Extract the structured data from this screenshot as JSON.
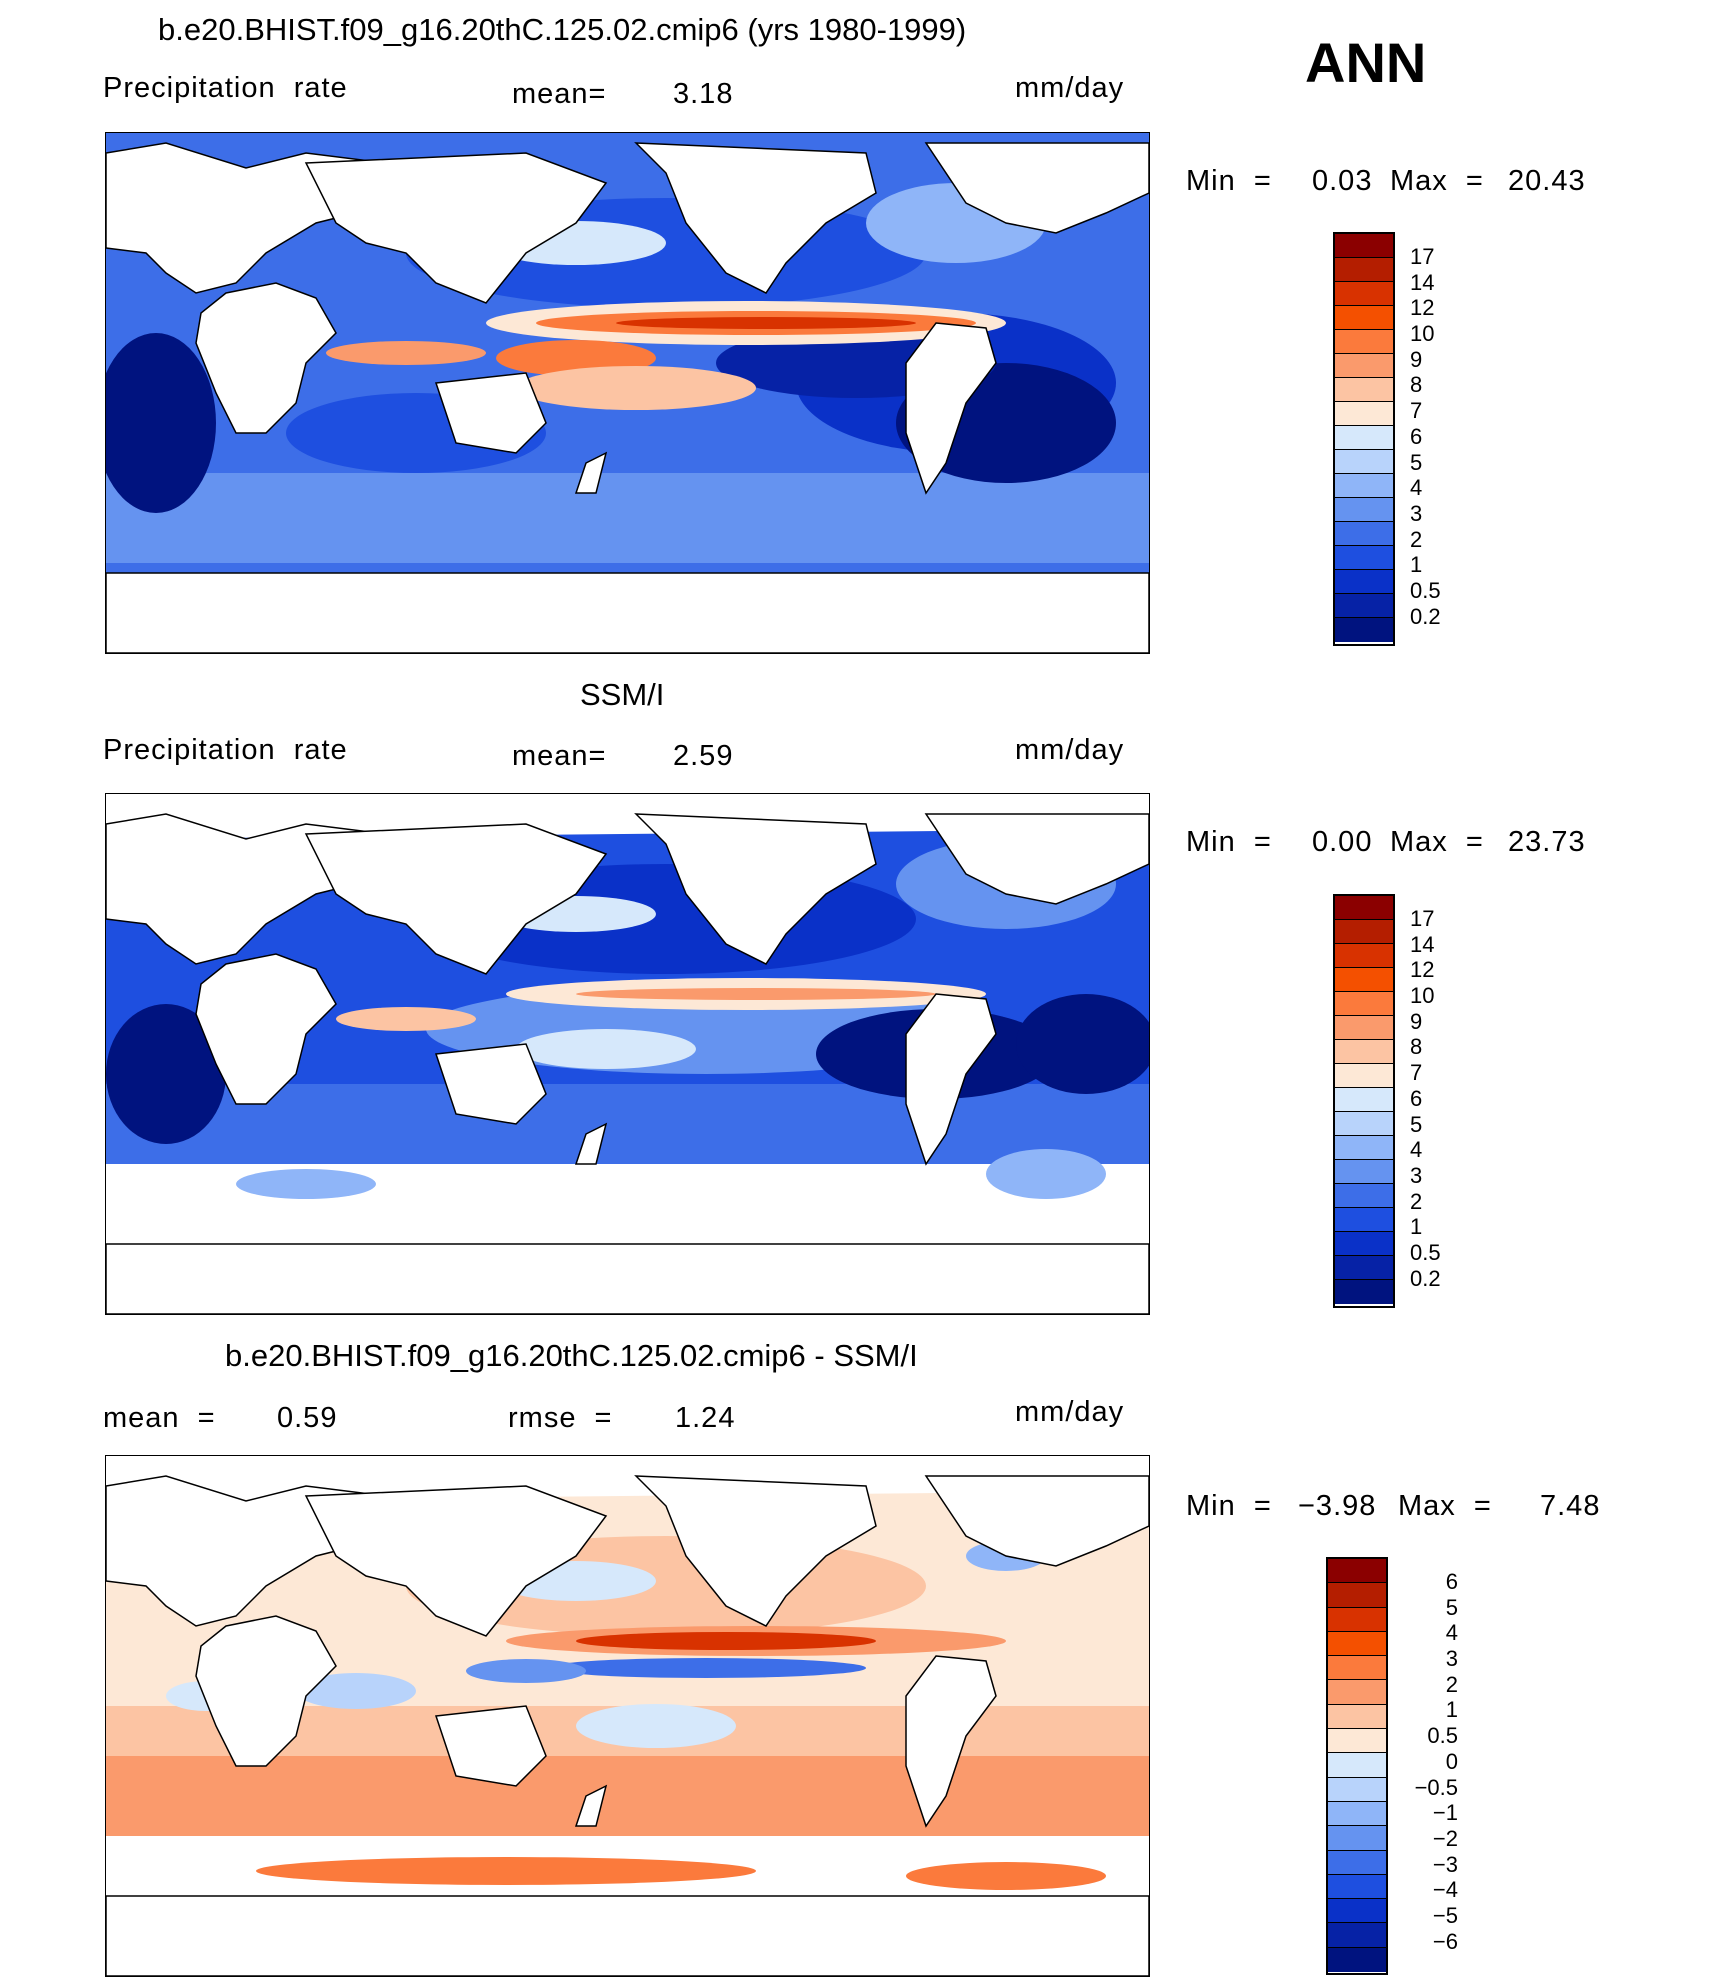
{
  "season": "ANN",
  "panels": [
    {
      "title": "b.e20.BHIST.f09_g16.20thC.125.02.cmip6 (yrs 1980-1999)",
      "left": "Precipitation  rate",
      "mid_label": "mean=",
      "mid_value": "3.18",
      "units": "mm/day",
      "minmax": {
        "min_label": "Min  =",
        "min": "0.03",
        "max_label": "Max  =",
        "max": "20.43"
      },
      "colorbar": [
        "17",
        "14",
        "12",
        "10",
        "9",
        "8",
        "7",
        "6",
        "5",
        "4",
        "3",
        "2",
        "1",
        "0.5",
        "0.2"
      ]
    },
    {
      "title": "SSM/I",
      "left": "Precipitation  rate",
      "mid_label": "mean=",
      "mid_value": "2.59",
      "units": "mm/day",
      "minmax": {
        "min_label": "Min  =",
        "min": "0.00",
        "max_label": "Max  =",
        "max": "23.73"
      },
      "colorbar": [
        "17",
        "14",
        "12",
        "10",
        "9",
        "8",
        "7",
        "6",
        "5",
        "4",
        "3",
        "2",
        "1",
        "0.5",
        "0.2"
      ]
    },
    {
      "title": "b.e20.BHIST.f09_g16.20thC.125.02.cmip6 - SSM/I",
      "left_label": "mean  =",
      "left_value": "0.59",
      "mid_label": "rmse  =",
      "mid_value": "1.24",
      "units": "mm/day",
      "minmax": {
        "min_label": "Min  =",
        "min": "−3.98",
        "max_label": "Max  =",
        "max": "7.48"
      },
      "colorbar": [
        "6",
        "5",
        "4",
        "3",
        "2",
        "1",
        "0.5",
        "0",
        "−0.5",
        "−1",
        "−2",
        "−3",
        "−4",
        "−5",
        "−6"
      ]
    }
  ],
  "colors": {
    "precip_scale": [
      "#8b0000",
      "#b41e00",
      "#d83200",
      "#f45000",
      "#fb7a3c",
      "#fa9a6c",
      "#fcc4a3",
      "#fde8d6",
      "#d6e8fb",
      "#b8d3fb",
      "#8fb5f8",
      "#6593f0",
      "#3d6ee8",
      "#1e4fe0",
      "#0a31c8",
      "#0622a6",
      "#00137f"
    ],
    "diff_scale": [
      "#8b0000",
      "#b41e00",
      "#d83200",
      "#f45000",
      "#fb7a3c",
      "#fa9a6c",
      "#fcc4a3",
      "#fde8d6",
      "#d6e8fb",
      "#b8d3fb",
      "#8fb5f8",
      "#6593f0",
      "#3d6ee8",
      "#1e4fe0",
      "#0a31c8",
      "#0622a6",
      "#00137f"
    ]
  }
}
